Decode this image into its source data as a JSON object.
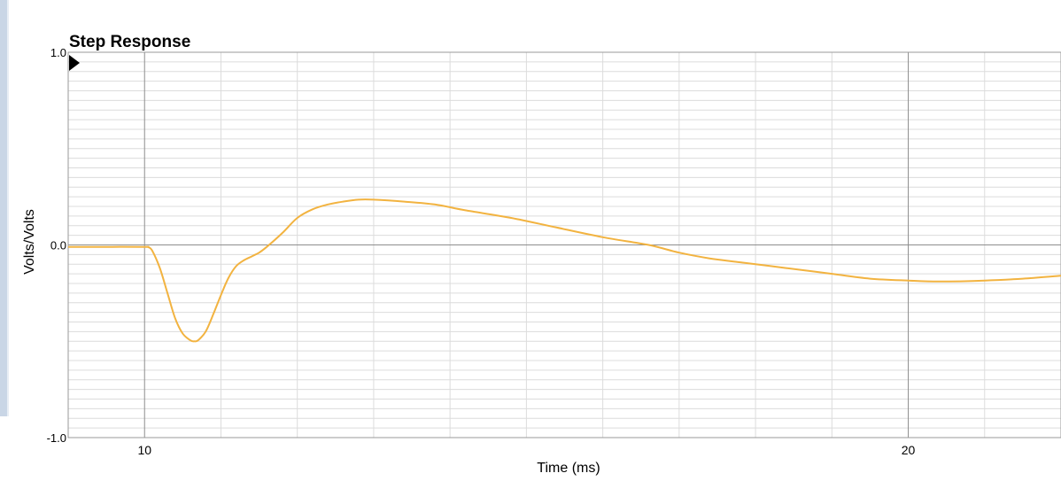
{
  "chart_data": {
    "type": "line",
    "title": "Step Response",
    "xlabel": "Time (ms)",
    "ylabel": "Volts/Volts",
    "xlim": [
      9.0,
      22.0
    ],
    "ylim": [
      -1.0,
      1.0
    ],
    "x_tick_labels": [
      {
        "value": 10,
        "label": "10"
      },
      {
        "value": 20,
        "label": "20"
      }
    ],
    "y_tick_labels": [
      {
        "value": 1.0,
        "label": "1.0"
      },
      {
        "value": 0.0,
        "label": "0.0"
      },
      {
        "value": -1.0,
        "label": "-1.0"
      }
    ],
    "x_major_lines": [
      10,
      20
    ],
    "x_minor_step": 1,
    "y_major_lines": [
      0
    ],
    "y_minor_step": 0.05,
    "grid": true,
    "series": [
      {
        "color": "#f2b340",
        "x": [
          9.0,
          9.5,
          10.0,
          10.05,
          10.1,
          10.2,
          10.3,
          10.4,
          10.5,
          10.6,
          10.65,
          10.7,
          10.8,
          10.9,
          11.0,
          11.1,
          11.2,
          11.3,
          11.4,
          11.5,
          11.6,
          11.8,
          12.0,
          12.2,
          12.4,
          12.6,
          12.8,
          13.0,
          13.4,
          13.8,
          14.2,
          14.8,
          15.4,
          16.0,
          16.6,
          17.0,
          17.4,
          17.8,
          18.2,
          18.6,
          19.0,
          19.5,
          20.0,
          20.4,
          21.0,
          21.5,
          22.0
        ],
        "values": [
          -0.01,
          -0.01,
          -0.01,
          -0.012,
          -0.03,
          -0.12,
          -0.25,
          -0.38,
          -0.46,
          -0.495,
          -0.5,
          -0.495,
          -0.45,
          -0.36,
          -0.26,
          -0.17,
          -0.11,
          -0.08,
          -0.06,
          -0.04,
          -0.01,
          0.06,
          0.14,
          0.185,
          0.21,
          0.225,
          0.235,
          0.235,
          0.225,
          0.21,
          0.18,
          0.14,
          0.09,
          0.04,
          0.0,
          -0.04,
          -0.07,
          -0.09,
          -0.11,
          -0.13,
          -0.15,
          -0.175,
          -0.185,
          -0.19,
          -0.185,
          -0.175,
          -0.16
        ]
      }
    ]
  }
}
